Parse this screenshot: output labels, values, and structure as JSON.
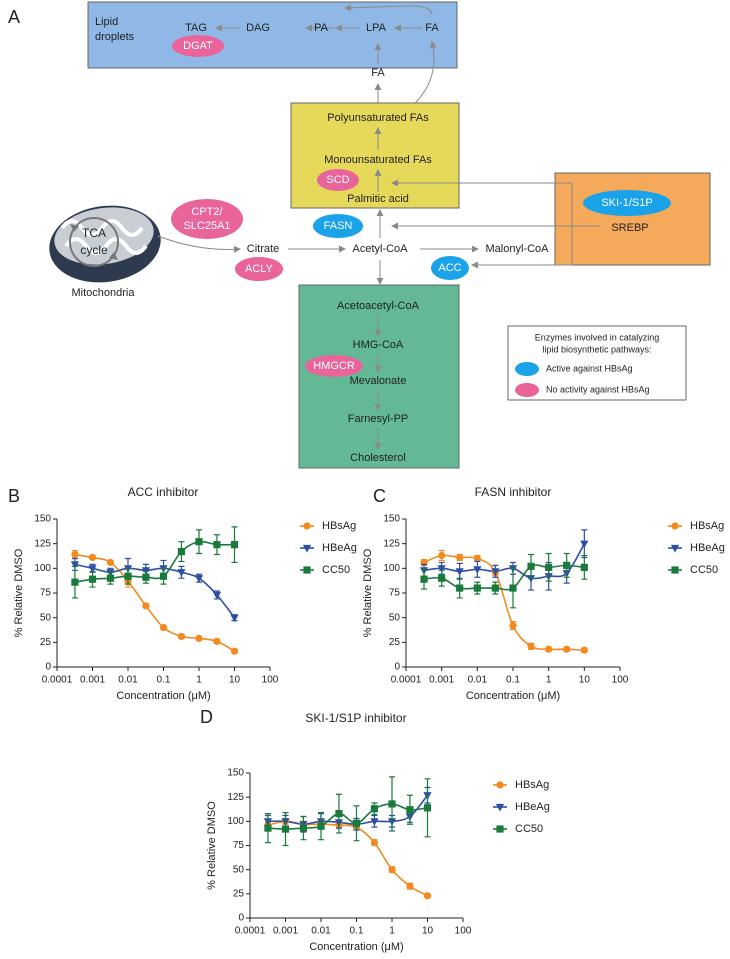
{
  "diagram": {
    "panel_label": "A",
    "texts": [
      "Lipid",
      "droplets",
      "TAG",
      "DAG",
      "PA",
      "LPA",
      "FA",
      "FA",
      "Polyunsaturated FAs",
      "Monounsaturated FAs",
      "Palmitic acid",
      "SREBP",
      "TCA",
      "cycle",
      "Mitochondria",
      "Citrate",
      "Acetyl-CoA",
      "Malonyl-CoA",
      "Acetoacetyl-CoA",
      "HMG-CoA",
      "Mevalonate",
      "Farnesyl-PP",
      "Cholesterol"
    ],
    "enzymes": [
      {
        "lines": [
          "DGAT"
        ],
        "color": "#e8649b"
      },
      {
        "lines": [
          "SCD"
        ],
        "color": "#e8649b"
      },
      {
        "lines": [
          "SKI-1/S1P"
        ],
        "color": "#1aa3e8"
      },
      {
        "lines": [
          "FASN"
        ],
        "color": "#1aa3e8"
      },
      {
        "lines": [
          "CPT2/",
          "SLC25A1"
        ],
        "color": "#e8649b"
      },
      {
        "lines": [
          "ACLY"
        ],
        "color": "#e8649b"
      },
      {
        "lines": [
          "ACC"
        ],
        "color": "#1aa3e8"
      },
      {
        "lines": [
          "HMGCR"
        ],
        "color": "#e8649b"
      }
    ],
    "legend": {
      "title": [
        "Enzymes involved in catalyzing",
        "lipid biosynthetic pathways:"
      ],
      "items": [
        {
          "label": "Active against HBsAg",
          "color": "#1aa3e8"
        },
        {
          "label": "No activity against HBsAg",
          "color": "#e8649b"
        }
      ]
    }
  },
  "chart_data": [
    {
      "type": "line",
      "panel_label": "B",
      "title": "ACC inhibitor",
      "xlabel": "Concentration (μM)",
      "ylabel": "% Relative DMSO",
      "xscale": "log",
      "xlim": [
        0.0001,
        100
      ],
      "xticks": [
        0.0001,
        0.001,
        0.01,
        0.1,
        1,
        10,
        100
      ],
      "ylim": [
        0,
        150
      ],
      "yticks": [
        0,
        25,
        50,
        75,
        100,
        125,
        150
      ],
      "legend": "right",
      "x": [
        0.00032,
        0.001,
        0.0032,
        0.01,
        0.032,
        0.1,
        0.32,
        1,
        3.2,
        10
      ],
      "series": [
        {
          "name": "HBsAg",
          "color": "#f28a1e",
          "marker": "circle",
          "values": [
            114,
            111,
            106,
            87,
            62,
            40,
            31,
            29,
            26,
            16
          ],
          "errors": [
            4,
            2,
            2,
            6,
            2,
            2,
            2,
            2,
            2,
            2
          ]
        },
        {
          "name": "HBeAg",
          "color": "#2e4ea5",
          "marker": "triangle-down",
          "values": [
            104,
            100,
            96,
            100,
            98,
            100,
            96,
            90,
            73,
            50
          ],
          "errors": [
            6,
            4,
            4,
            10,
            6,
            8,
            6,
            4,
            4,
            3
          ]
        },
        {
          "name": "CC50",
          "color": "#1a7a3c",
          "marker": "square",
          "values": [
            86,
            89,
            90,
            92,
            91,
            92,
            117,
            127,
            124,
            124
          ],
          "errors": [
            16,
            8,
            6,
            8,
            6,
            8,
            10,
            12,
            10,
            18
          ]
        }
      ]
    },
    {
      "type": "line",
      "panel_label": "C",
      "title": "FASN inhibitor",
      "xlabel": "Concentration (μM)",
      "ylabel": "% Relative DMSO",
      "xscale": "log",
      "xlim": [
        0.0001,
        100
      ],
      "xticks": [
        0.0001,
        0.001,
        0.01,
        0.1,
        1,
        10,
        100
      ],
      "ylim": [
        0,
        150
      ],
      "yticks": [
        0,
        25,
        50,
        75,
        100,
        125,
        150
      ],
      "legend": "right",
      "x": [
        0.00032,
        0.001,
        0.0032,
        0.01,
        0.032,
        0.1,
        0.32,
        1,
        3.2,
        10
      ],
      "series": [
        {
          "name": "HBsAg",
          "color": "#f28a1e",
          "marker": "circle",
          "values": [
            106,
            113,
            111,
            110,
            96,
            42,
            21,
            18,
            18,
            17
          ],
          "errors": [
            3,
            5,
            3,
            3,
            3,
            4,
            3,
            2,
            2,
            2
          ]
        },
        {
          "name": "HBeAg",
          "color": "#2e4ea5",
          "marker": "triangle-down",
          "values": [
            98,
            100,
            97,
            99,
            97,
            100,
            90,
            92,
            95,
            125
          ],
          "errors": [
            6,
            6,
            8,
            8,
            6,
            6,
            12,
            14,
            10,
            14
          ]
        },
        {
          "name": "CC50",
          "color": "#1a7a3c",
          "marker": "square",
          "values": [
            89,
            90,
            80,
            80,
            80,
            80,
            102,
            101,
            103,
            101
          ],
          "errors": [
            10,
            8,
            10,
            6,
            6,
            20,
            12,
            14,
            12,
            12
          ]
        }
      ]
    },
    {
      "type": "line",
      "panel_label": "D",
      "title": "SKI-1/S1P inhibitor",
      "xlabel": "Concentration (μM)",
      "ylabel": "% Relative DMSO",
      "xscale": "log",
      "xlim": [
        0.0001,
        100
      ],
      "xticks": [
        0.0001,
        0.001,
        0.01,
        0.1,
        1,
        10,
        100
      ],
      "ylim": [
        0,
        150
      ],
      "yticks": [
        0,
        25,
        50,
        75,
        100,
        125,
        150
      ],
      "legend": "right",
      "x": [
        0.00032,
        0.001,
        0.0032,
        0.01,
        0.032,
        0.1,
        0.32,
        1,
        3.2,
        10
      ],
      "series": [
        {
          "name": "HBsAg",
          "color": "#f28a1e",
          "marker": "circle",
          "values": [
            96,
            100,
            97,
            97,
            96,
            94,
            78,
            50,
            33,
            23
          ],
          "errors": [
            3,
            3,
            3,
            3,
            3,
            3,
            3,
            3,
            3,
            2
          ]
        },
        {
          "name": "HBeAg",
          "color": "#2e4ea5",
          "marker": "triangle-down",
          "values": [
            100,
            100,
            97,
            100,
            99,
            97,
            100,
            100,
            105,
            127
          ],
          "errors": [
            6,
            6,
            8,
            8,
            6,
            6,
            6,
            6,
            6,
            8
          ]
        },
        {
          "name": "CC50",
          "color": "#1a7a3c",
          "marker": "square",
          "values": [
            93,
            92,
            93,
            95,
            108,
            98,
            113,
            118,
            112,
            114
          ],
          "errors": [
            15,
            17,
            12,
            14,
            20,
            18,
            6,
            28,
            15,
            30
          ]
        }
      ]
    }
  ]
}
